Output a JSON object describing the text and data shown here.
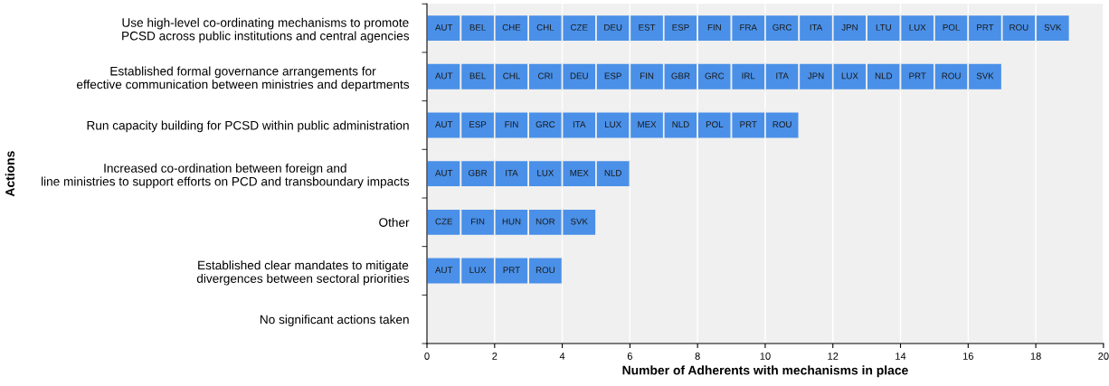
{
  "chart_data": {
    "type": "bar",
    "orientation": "horizontal",
    "stacked": true,
    "ylabel": "Actions",
    "xlabel": "Number of Adherents with mechanisms in place",
    "categories": [
      "Use high-level co-ordinating mechanisms to promote\nPCSD across public institutions and central agencies",
      "Established formal governance arrangements for\neffective communication between ministries and departments",
      "Run capacity building for PCSD within public administration",
      "Increased co-ordination between foreign and\nline ministries to support efforts on PCD and transboundary impacts",
      "Other",
      "Established clear mandates to mitigate\ndivergences between sectoral priorities",
      "No significant actions taken"
    ],
    "xlim": [
      0,
      20
    ],
    "xticks": [
      0,
      2,
      4,
      6,
      8,
      10,
      12,
      14,
      16,
      18,
      20
    ],
    "grid": "x",
    "series": [
      {
        "color": "#4a90e8",
        "values": [
          1,
          1,
          1,
          1,
          1,
          1,
          null
        ],
        "value_labels": [
          "AUT",
          "AUT",
          "AUT",
          "AUT",
          "CZE",
          "AUT",
          null
        ]
      },
      {
        "color": "#4a90e8",
        "values": [
          1,
          1,
          1,
          1,
          1,
          1,
          null
        ],
        "value_labels": [
          "BEL",
          "BEL",
          "ESP",
          "GBR",
          "FIN",
          "LUX",
          null
        ]
      },
      {
        "color": "#4a90e8",
        "values": [
          1,
          1,
          1,
          1,
          1,
          1,
          null
        ],
        "value_labels": [
          "CHE",
          "CHL",
          "FIN",
          "ITA",
          "HUN",
          "PRT",
          null
        ]
      },
      {
        "color": "#4a90e8",
        "values": [
          1,
          1,
          1,
          1,
          1,
          1,
          null
        ],
        "value_labels": [
          "CHL",
          "CRI",
          "GRC",
          "LUX",
          "NOR",
          "ROU",
          null
        ]
      },
      {
        "color": "#4a90e8",
        "values": [
          1,
          1,
          1,
          1,
          1,
          null,
          null
        ],
        "value_labels": [
          "CZE",
          "DEU",
          "ITA",
          "MEX",
          "SVK",
          null,
          null
        ]
      },
      {
        "color": "#4a90e8",
        "values": [
          1,
          1,
          1,
          1,
          null,
          null,
          null
        ],
        "value_labels": [
          "DEU",
          "ESP",
          "LUX",
          "NLD",
          null,
          null,
          null
        ]
      },
      {
        "color": "#4a90e8",
        "values": [
          1,
          1,
          1,
          null,
          null,
          null,
          null
        ],
        "value_labels": [
          "EST",
          "FIN",
          "MEX",
          null,
          null,
          null,
          null
        ]
      },
      {
        "color": "#4a90e8",
        "values": [
          1,
          1,
          1,
          null,
          null,
          null,
          null
        ],
        "value_labels": [
          "ESP",
          "GBR",
          "NLD",
          null,
          null,
          null,
          null
        ]
      },
      {
        "color": "#4a90e8",
        "values": [
          1,
          1,
          1,
          null,
          null,
          null,
          null
        ],
        "value_labels": [
          "FIN",
          "GRC",
          "POL",
          null,
          null,
          null,
          null
        ]
      },
      {
        "color": "#4a90e8",
        "values": [
          1,
          1,
          1,
          null,
          null,
          null,
          null
        ],
        "value_labels": [
          "FRA",
          "IRL",
          "PRT",
          null,
          null,
          null,
          null
        ]
      },
      {
        "color": "#4a90e8",
        "values": [
          1,
          1,
          1,
          null,
          null,
          null,
          null
        ],
        "value_labels": [
          "GRC",
          "ITA",
          "ROU",
          null,
          null,
          null,
          null
        ]
      },
      {
        "color": "#4a90e8",
        "values": [
          1,
          1,
          null,
          null,
          null,
          null,
          null
        ],
        "value_labels": [
          "ITA",
          "JPN",
          null,
          null,
          null,
          null,
          null
        ]
      },
      {
        "color": "#4a90e8",
        "values": [
          1,
          1,
          null,
          null,
          null,
          null,
          null
        ],
        "value_labels": [
          "JPN",
          "LUX",
          null,
          null,
          null,
          null,
          null
        ]
      },
      {
        "color": "#4a90e8",
        "values": [
          1,
          1,
          null,
          null,
          null,
          null,
          null
        ],
        "value_labels": [
          "LTU",
          "NLD",
          null,
          null,
          null,
          null,
          null
        ]
      },
      {
        "color": "#4a90e8",
        "values": [
          1,
          1,
          null,
          null,
          null,
          null,
          null
        ],
        "value_labels": [
          "LUX",
          "PRT",
          null,
          null,
          null,
          null,
          null
        ]
      },
      {
        "color": "#4a90e8",
        "values": [
          1,
          1,
          null,
          null,
          null,
          null,
          null
        ],
        "value_labels": [
          "POL",
          "ROU",
          null,
          null,
          null,
          null,
          null
        ]
      },
      {
        "color": "#4a90e8",
        "values": [
          1,
          1,
          null,
          null,
          null,
          null,
          null
        ],
        "value_labels": [
          "PRT",
          "SVK",
          null,
          null,
          null,
          null,
          null
        ]
      },
      {
        "color": "#4a90e8",
        "values": [
          1,
          null,
          null,
          null,
          null,
          null,
          null
        ],
        "value_labels": [
          "ROU",
          null,
          null,
          null,
          null,
          null,
          null
        ]
      },
      {
        "color": "#4a90e8",
        "values": [
          1,
          null,
          null,
          null,
          null,
          null,
          null
        ],
        "value_labels": [
          "SVK",
          null,
          null,
          null,
          null,
          null,
          null
        ]
      }
    ]
  }
}
